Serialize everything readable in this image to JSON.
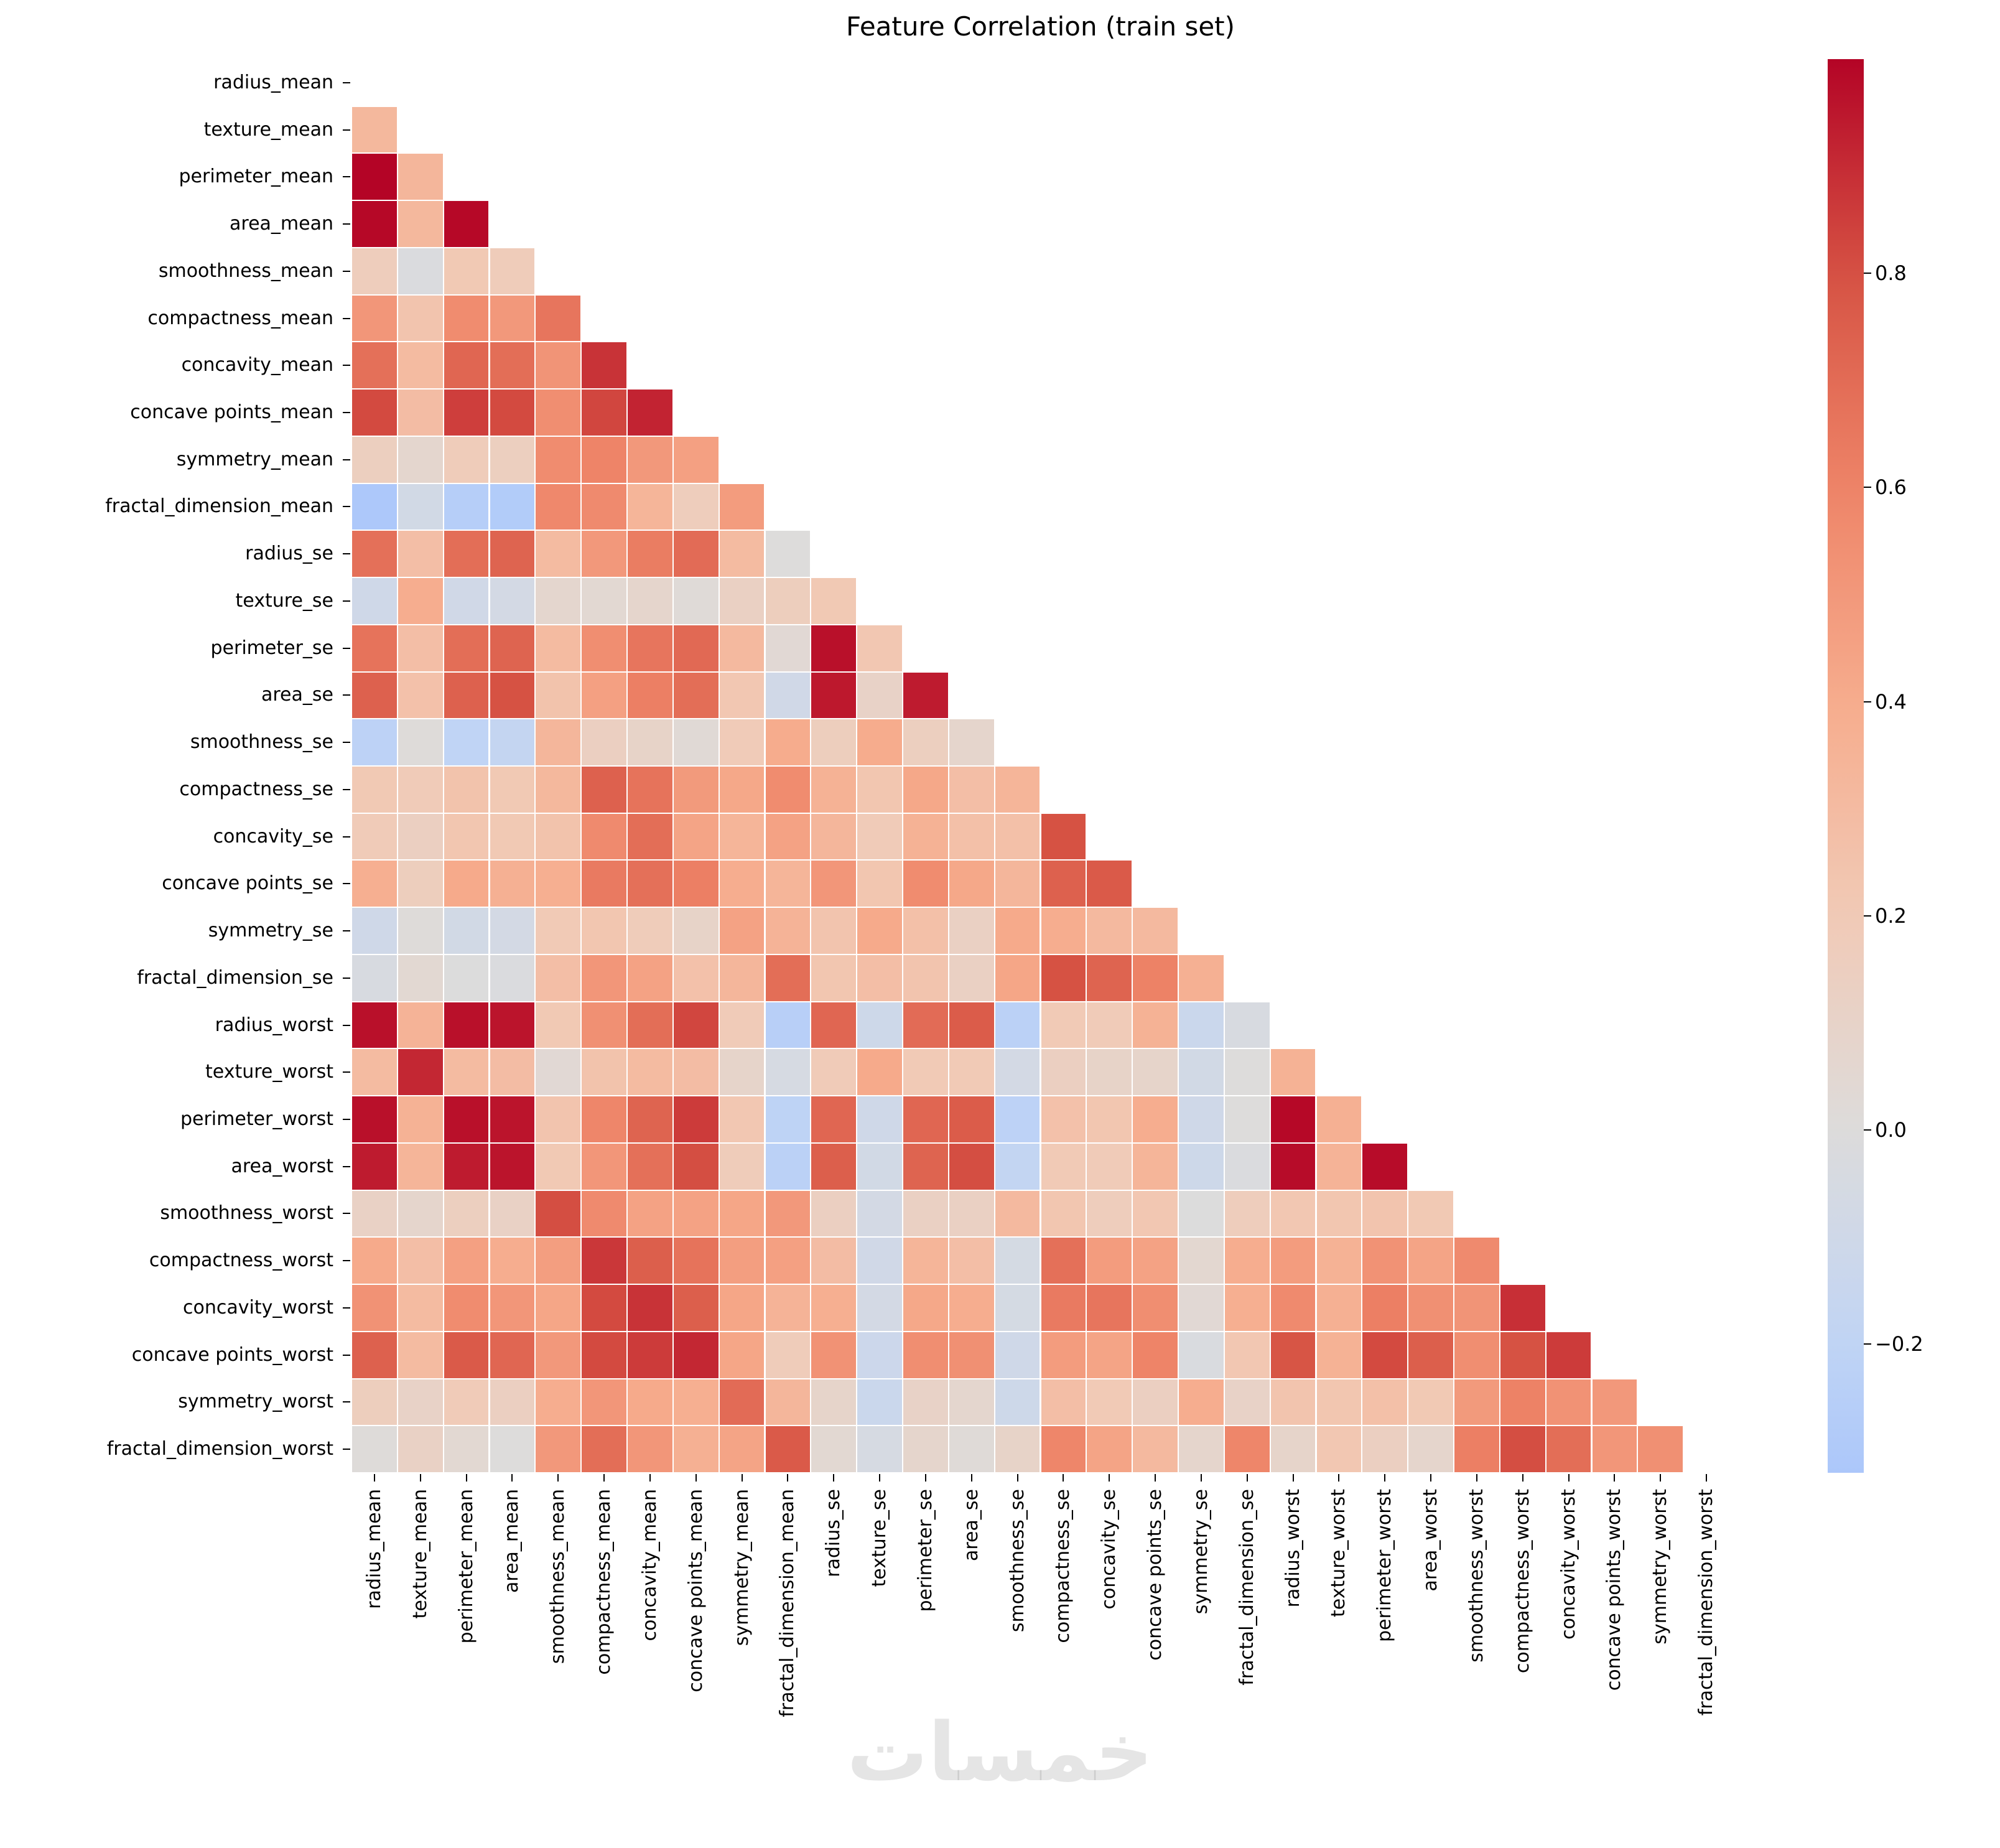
{
  "title": "Feature Correlation (train set)",
  "watermark": "خمسات",
  "colors": {
    "cmap_low": "#3b4cc0",
    "cmap_mid": "#dddcdc",
    "cmap_high": "#b40426",
    "grid_line": "#ffffff",
    "text": "#000000"
  },
  "chart_data": {
    "type": "heatmap",
    "title": "Feature Correlation (train set)",
    "colormap": "coolwarm",
    "mask": "upper-triangle-and-diagonal-hidden",
    "center": 0,
    "cmap_domain": [
      -1,
      1
    ],
    "vmin": -0.32,
    "vmax": 1.0,
    "legend_position": "right-colorbar",
    "colorbar_ticks": [
      {
        "label": "0.8",
        "value": 0.8
      },
      {
        "label": "0.6",
        "value": 0.6
      },
      {
        "label": "0.4",
        "value": 0.4
      },
      {
        "label": "0.2",
        "value": 0.2
      },
      {
        "label": "0.0",
        "value": 0.0
      },
      {
        "label": "−0.2",
        "value": -0.2
      }
    ],
    "labels": [
      "radius_mean",
      "texture_mean",
      "perimeter_mean",
      "area_mean",
      "smoothness_mean",
      "compactness_mean",
      "concavity_mean",
      "concave points_mean",
      "symmetry_mean",
      "fractal_dimension_mean",
      "radius_se",
      "texture_se",
      "perimeter_se",
      "area_se",
      "smoothness_se",
      "compactness_se",
      "concavity_se",
      "concave points_se",
      "symmetry_se",
      "fractal_dimension_se",
      "radius_worst",
      "texture_worst",
      "perimeter_worst",
      "area_worst",
      "smoothness_worst",
      "compactness_worst",
      "concavity_worst",
      "concave points_worst",
      "symmetry_worst",
      "fractal_dimension_worst"
    ],
    "triangle_rows": [
      [],
      [
        0.32
      ],
      [
        1.0,
        0.33
      ],
      [
        0.99,
        0.32,
        0.99
      ],
      [
        0.17,
        -0.02,
        0.21,
        0.18
      ],
      [
        0.51,
        0.24,
        0.56,
        0.5,
        0.66
      ],
      [
        0.68,
        0.3,
        0.72,
        0.69,
        0.52,
        0.88
      ],
      [
        0.82,
        0.29,
        0.85,
        0.82,
        0.55,
        0.83,
        0.92
      ],
      [
        0.15,
        0.07,
        0.18,
        0.15,
        0.56,
        0.6,
        0.5,
        0.46
      ],
      [
        -0.31,
        -0.08,
        -0.26,
        -0.28,
        0.58,
        0.57,
        0.34,
        0.17,
        0.48
      ],
      [
        0.68,
        0.28,
        0.69,
        0.73,
        0.3,
        0.5,
        0.63,
        0.7,
        0.3,
        0.0
      ],
      [
        -0.1,
        0.39,
        -0.09,
        -0.07,
        0.07,
        0.05,
        0.08,
        0.02,
        0.13,
        0.16,
        0.21
      ],
      [
        0.67,
        0.28,
        0.69,
        0.73,
        0.3,
        0.55,
        0.66,
        0.71,
        0.31,
        0.04,
        0.97,
        0.22
      ],
      [
        0.74,
        0.26,
        0.74,
        0.8,
        0.25,
        0.46,
        0.62,
        0.69,
        0.22,
        -0.09,
        0.95,
        0.11,
        0.94
      ],
      [
        -0.22,
        0.01,
        -0.2,
        -0.17,
        0.33,
        0.14,
        0.1,
        0.03,
        0.19,
        0.4,
        0.16,
        0.4,
        0.15,
        0.08
      ],
      [
        0.21,
        0.19,
        0.25,
        0.21,
        0.32,
        0.74,
        0.67,
        0.49,
        0.42,
        0.56,
        0.36,
        0.23,
        0.42,
        0.28,
        0.34
      ],
      [
        0.19,
        0.14,
        0.23,
        0.21,
        0.25,
        0.57,
        0.69,
        0.44,
        0.34,
        0.45,
        0.33,
        0.19,
        0.36,
        0.27,
        0.27,
        0.8
      ],
      [
        0.38,
        0.16,
        0.41,
        0.37,
        0.38,
        0.64,
        0.68,
        0.62,
        0.39,
        0.34,
        0.51,
        0.23,
        0.56,
        0.42,
        0.33,
        0.74,
        0.77
      ],
      [
        -0.1,
        0.01,
        -0.08,
        -0.07,
        0.2,
        0.23,
        0.18,
        0.1,
        0.45,
        0.35,
        0.24,
        0.41,
        0.27,
        0.13,
        0.41,
        0.39,
        0.31,
        0.31
      ],
      [
        -0.04,
        0.05,
        -0.01,
        -0.02,
        0.28,
        0.51,
        0.45,
        0.26,
        0.33,
        0.69,
        0.23,
        0.28,
        0.24,
        0.13,
        0.43,
        0.8,
        0.73,
        0.61,
        0.37
      ],
      [
        0.97,
        0.35,
        0.97,
        0.96,
        0.21,
        0.54,
        0.69,
        0.83,
        0.19,
        -0.25,
        0.72,
        -0.11,
        0.7,
        0.76,
        -0.23,
        0.2,
        0.19,
        0.36,
        -0.13,
        -0.04
      ],
      [
        0.3,
        0.91,
        0.3,
        0.29,
        0.04,
        0.25,
        0.3,
        0.29,
        0.09,
        -0.05,
        0.19,
        0.41,
        0.2,
        0.2,
        -0.07,
        0.14,
        0.1,
        0.09,
        -0.08,
        0.0,
        0.36
      ],
      [
        0.97,
        0.36,
        0.97,
        0.96,
        0.24,
        0.59,
        0.73,
        0.86,
        0.22,
        -0.21,
        0.72,
        -0.1,
        0.72,
        0.76,
        -0.22,
        0.26,
        0.23,
        0.39,
        -0.1,
        0.0,
        0.99,
        0.37
      ],
      [
        0.94,
        0.34,
        0.94,
        0.96,
        0.21,
        0.51,
        0.68,
        0.81,
        0.18,
        -0.23,
        0.75,
        -0.08,
        0.73,
        0.81,
        -0.18,
        0.2,
        0.19,
        0.34,
        -0.11,
        -0.02,
        0.98,
        0.35,
        0.98
      ],
      [
        0.12,
        0.08,
        0.15,
        0.12,
        0.81,
        0.57,
        0.45,
        0.45,
        0.43,
        0.5,
        0.14,
        -0.07,
        0.13,
        0.13,
        0.31,
        0.23,
        0.17,
        0.22,
        -0.01,
        0.17,
        0.22,
        0.23,
        0.24,
        0.21
      ],
      [
        0.41,
        0.28,
        0.46,
        0.39,
        0.47,
        0.87,
        0.75,
        0.67,
        0.47,
        0.46,
        0.29,
        -0.09,
        0.34,
        0.28,
        -0.06,
        0.68,
        0.48,
        0.45,
        0.06,
        0.39,
        0.48,
        0.36,
        0.53,
        0.44,
        0.57
      ],
      [
        0.53,
        0.3,
        0.56,
        0.51,
        0.43,
        0.82,
        0.88,
        0.75,
        0.43,
        0.35,
        0.38,
        -0.07,
        0.42,
        0.39,
        -0.06,
        0.64,
        0.66,
        0.55,
        0.04,
        0.38,
        0.57,
        0.37,
        0.62,
        0.54,
        0.52,
        0.89
      ],
      [
        0.74,
        0.3,
        0.77,
        0.72,
        0.5,
        0.82,
        0.86,
        0.91,
        0.43,
        0.18,
        0.53,
        -0.12,
        0.55,
        0.54,
        -0.1,
        0.48,
        0.44,
        0.6,
        -0.03,
        0.22,
        0.79,
        0.36,
        0.82,
        0.75,
        0.55,
        0.8,
        0.86
      ],
      [
        0.16,
        0.11,
        0.19,
        0.14,
        0.39,
        0.51,
        0.41,
        0.38,
        0.7,
        0.33,
        0.09,
        -0.13,
        0.11,
        0.07,
        -0.11,
        0.28,
        0.2,
        0.14,
        0.39,
        0.11,
        0.24,
        0.23,
        0.27,
        0.21,
        0.49,
        0.61,
        0.53,
        0.5
      ],
      [
        0.01,
        0.12,
        0.05,
        0.0,
        0.5,
        0.69,
        0.51,
        0.37,
        0.44,
        0.77,
        0.05,
        -0.05,
        0.08,
        0.02,
        0.1,
        0.59,
        0.44,
        0.31,
        0.08,
        0.59,
        0.09,
        0.22,
        0.14,
        0.08,
        0.62,
        0.81,
        0.69,
        0.51,
        0.54
      ]
    ]
  }
}
